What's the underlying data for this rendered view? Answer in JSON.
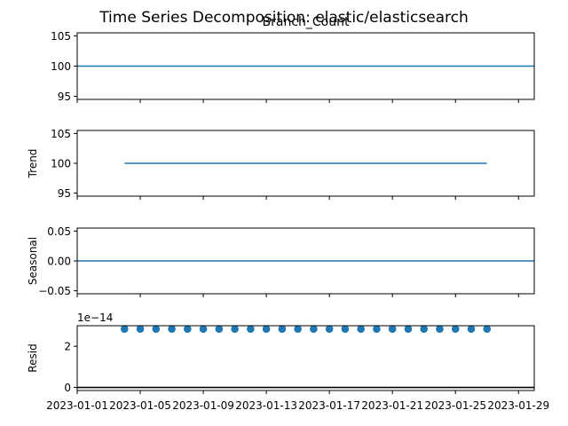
{
  "figure_title": "Time Series Decomposition: elastic/elasticsearch",
  "colors": {
    "line": "#1f77b4",
    "axis": "#000000",
    "zero_line": "#000000",
    "background": "#ffffff"
  },
  "chart_data": [
    {
      "type": "line",
      "title": "Branch_Count",
      "ylabel": "",
      "ylim": [
        94.5,
        105.5
      ],
      "yticks": [
        95,
        100,
        105
      ],
      "ytick_labels": [
        "95",
        "100",
        "105"
      ],
      "xlim": [
        "2023-01-01",
        "2023-01-30"
      ],
      "x": [
        "2023-01-01",
        "2023-01-30"
      ],
      "values": [
        100,
        100
      ],
      "grid": false,
      "legend": "none"
    },
    {
      "type": "line",
      "title": "",
      "ylabel": "Trend",
      "ylim": [
        94.5,
        105.5
      ],
      "yticks": [
        95,
        100,
        105
      ],
      "ytick_labels": [
        "95",
        "100",
        "105"
      ],
      "xlim": [
        "2023-01-01",
        "2023-01-30"
      ],
      "x": [
        "2023-01-04",
        "2023-01-27"
      ],
      "values": [
        100,
        100
      ],
      "grid": false,
      "legend": "none"
    },
    {
      "type": "line",
      "title": "",
      "ylabel": "Seasonal",
      "ylim": [
        -0.055,
        0.055
      ],
      "yticks": [
        -0.05,
        0.0,
        0.05
      ],
      "ytick_labels": [
        "−0.05",
        "0.00",
        "0.05"
      ],
      "xlim": [
        "2023-01-01",
        "2023-01-30"
      ],
      "x": [
        "2023-01-01",
        "2023-01-30"
      ],
      "values": [
        0,
        0
      ],
      "grid": false,
      "legend": "none"
    },
    {
      "type": "scatter",
      "title": "",
      "ylabel": "Resid",
      "offset_label": "1e−14",
      "ylim": [
        -0.15,
        3.0
      ],
      "yticks": [
        0,
        2
      ],
      "ytick_labels": [
        "0",
        "2"
      ],
      "xlim": [
        "2023-01-01",
        "2023-01-30"
      ],
      "x": [
        "2023-01-04",
        "2023-01-05",
        "2023-01-06",
        "2023-01-07",
        "2023-01-08",
        "2023-01-09",
        "2023-01-10",
        "2023-01-11",
        "2023-01-12",
        "2023-01-13",
        "2023-01-14",
        "2023-01-15",
        "2023-01-16",
        "2023-01-17",
        "2023-01-18",
        "2023-01-19",
        "2023-01-20",
        "2023-01-21",
        "2023-01-22",
        "2023-01-23",
        "2023-01-24",
        "2023-01-25",
        "2023-01-26",
        "2023-01-27"
      ],
      "values": [
        2.84,
        2.84,
        2.84,
        2.84,
        2.84,
        2.84,
        2.84,
        2.84,
        2.84,
        2.84,
        2.84,
        2.84,
        2.84,
        2.84,
        2.84,
        2.84,
        2.84,
        2.84,
        2.84,
        2.84,
        2.84,
        2.84,
        2.84,
        2.84
      ],
      "zero_line": 0,
      "grid": false,
      "legend": "none"
    }
  ],
  "xaxis": {
    "ticks": [
      "2023-01-01",
      "2023-01-05",
      "2023-01-09",
      "2023-01-13",
      "2023-01-17",
      "2023-01-21",
      "2023-01-25",
      "2023-01-29"
    ],
    "tick_labels": [
      "2023-01-01",
      "2023-01-05",
      "2023-01-09",
      "2023-01-13",
      "2023-01-17",
      "2023-01-21",
      "2023-01-25",
      "2023-01-29"
    ]
  }
}
